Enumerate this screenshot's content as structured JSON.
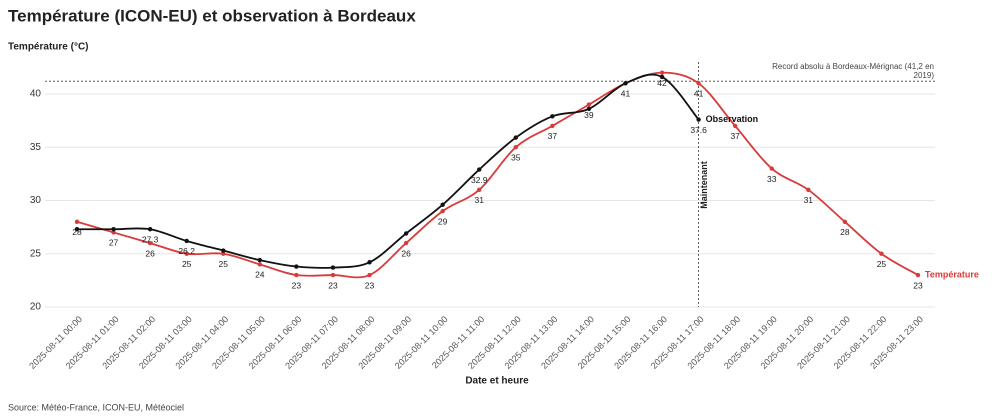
{
  "chart_data": {
    "type": "line",
    "title": "Température (ICON-EU) et observation à Bordeaux",
    "y_label": "Température (°C)",
    "x_label": "Date et heure",
    "source": "Source: Météo-France, ICON-EU, Météociel",
    "categories": [
      "2025-08-11 00:00",
      "2025-08-11 01:00",
      "2025-08-11 02:00",
      "2025-08-11 03:00",
      "2025-08-11 04:00",
      "2025-08-11 05:00",
      "2025-08-11 06:00",
      "2025-08-11 07:00",
      "2025-08-11 08:00",
      "2025-08-11 09:00",
      "2025-08-11 10:00",
      "2025-08-11 11:00",
      "2025-08-11 12:00",
      "2025-08-11 13:00",
      "2025-08-11 14:00",
      "2025-08-11 15:00",
      "2025-08-11 16:00",
      "2025-08-11 17:00",
      "2025-08-11 18:00",
      "2025-08-11 19:00",
      "2025-08-11 20:00",
      "2025-08-11 21:00",
      "2025-08-11 22:00",
      "2025-08-11 23:00"
    ],
    "series": [
      {
        "name": "Température",
        "color": "#d93a3a",
        "values": [
          28,
          27,
          26,
          25,
          25,
          24,
          23,
          23,
          23,
          26,
          29,
          31,
          35,
          37,
          39,
          41,
          42,
          41,
          37,
          33,
          31,
          28,
          25,
          23
        ]
      },
      {
        "name": "Observation",
        "color": "#111111",
        "values": [
          27.3,
          27.3,
          27.3,
          26.2,
          25.3,
          24.4,
          23.8,
          23.7,
          24.2,
          26.9,
          29.6,
          32.9,
          35.9,
          37.9,
          38.6,
          41,
          41.6,
          37.6,
          null,
          null,
          null,
          null,
          null,
          null
        ],
        "value_labels": [
          null,
          null,
          "27.3",
          "26.2",
          null,
          null,
          null,
          null,
          null,
          null,
          null,
          "32.9",
          null,
          null,
          null,
          null,
          null,
          "37.6",
          null,
          null,
          null,
          null,
          null,
          null
        ]
      }
    ],
    "ylim": [
      20,
      43
    ],
    "yticks": [
      20,
      25,
      30,
      35,
      40
    ],
    "grid": true,
    "record": {
      "value": 41.2,
      "label": "Record absolu à Bordeaux-Mérignac (41,2 en 2019)"
    },
    "now": {
      "x": "2025-08-11 17:00",
      "label": "Maintenant"
    }
  }
}
